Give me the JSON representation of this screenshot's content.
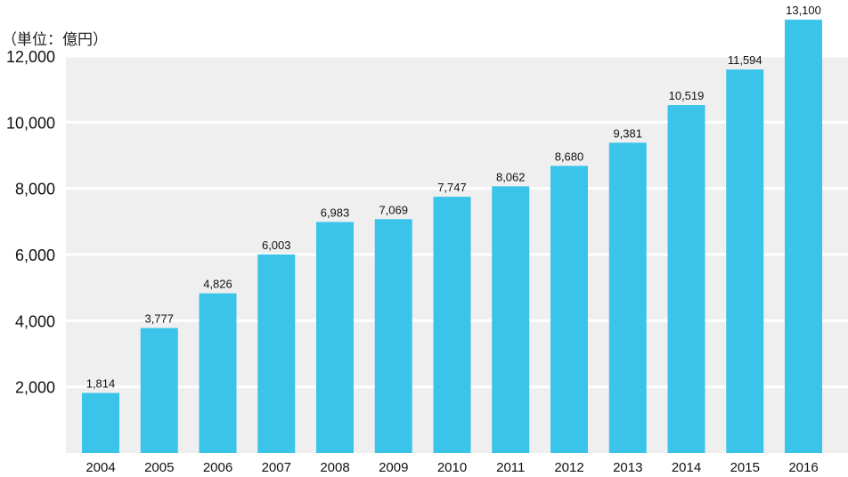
{
  "unit_label": "（単位：億円）",
  "colors": {
    "bar": "#3bc4ea",
    "plot_bg": "#efefef",
    "grid": "#ffffff",
    "text": "#111111"
  },
  "chart_data": {
    "type": "bar",
    "title": "",
    "xlabel": "",
    "ylabel": "",
    "categories": [
      "2004",
      "2005",
      "2006",
      "2007",
      "2008",
      "2009",
      "2010",
      "2011",
      "2012",
      "2013",
      "2014",
      "2015",
      "2016"
    ],
    "values": [
      1814,
      3777,
      4826,
      6003,
      6983,
      7069,
      7747,
      8062,
      8680,
      9381,
      10519,
      11594,
      13100
    ],
    "data_labels": [
      "1,814",
      "3,777",
      "4,826",
      "6,003",
      "6,983",
      "7,069",
      "7,747",
      "8,062",
      "8,680",
      "9,381",
      "10,519",
      "11,594",
      "13,100"
    ],
    "yticks": [
      2000,
      4000,
      6000,
      8000,
      10000,
      12000
    ],
    "ytick_labels": [
      "2,000",
      "4,000",
      "6,000",
      "8,000",
      "10,000",
      "12,000"
    ],
    "ylim": [
      0,
      12000
    ],
    "grid": true,
    "legend": "none"
  }
}
